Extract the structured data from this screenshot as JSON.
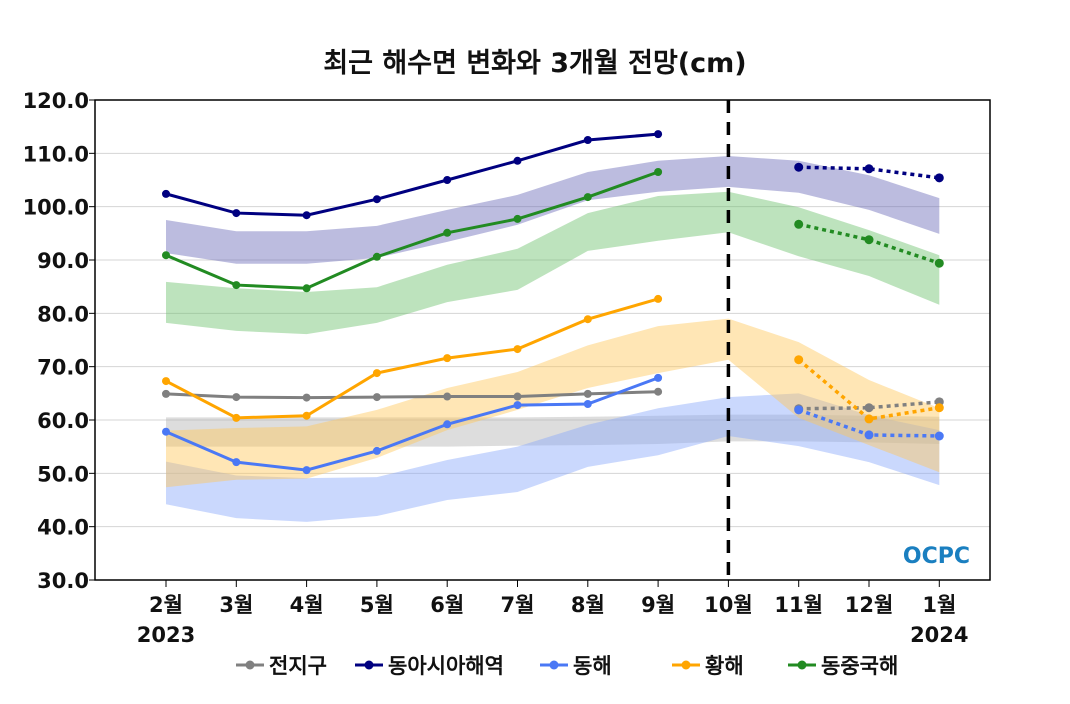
{
  "chart_data": {
    "type": "line",
    "title": "최근 해수면 변화와 3개월 전망(cm)",
    "xlabel": "",
    "ylabel": "",
    "ylim": [
      30,
      120
    ],
    "yticks": [
      "30.0",
      "40.0",
      "50.0",
      "60.0",
      "70.0",
      "80.0",
      "90.0",
      "100.0",
      "110.0",
      "120.0"
    ],
    "categories": [
      "2월",
      "3월",
      "4월",
      "5월",
      "6월",
      "7월",
      "8월",
      "9월",
      "10월",
      "11월",
      "12월",
      "1월"
    ],
    "year_labels": {
      "start": "2023",
      "end": "2024"
    },
    "forecast_divider_category": "10월",
    "grid": true,
    "legend_position": "bottom",
    "logo": "OCPC",
    "series": [
      {
        "name": "전지구",
        "color": "#808080",
        "band_color": "#b4b4b4",
        "observed": [
          64.9,
          64.3,
          64.2,
          64.3,
          64.4,
          64.4,
          64.9,
          65.3
        ],
        "forecast": [
          62.1,
          62.3,
          63.4
        ],
        "band_upper": [
          60.5,
          60.5,
          60.5,
          60.5,
          60.5,
          60.5,
          60.6,
          60.8,
          61.0,
          61.0,
          60.8,
          60.6
        ],
        "band_lower": [
          55.0,
          55.0,
          55.0,
          55.0,
          55.0,
          55.2,
          55.3,
          55.5,
          56.0,
          56.0,
          55.8,
          55.5
        ]
      },
      {
        "name": "동아시아해역",
        "color": "#000080",
        "band_color": "#6a6ab8",
        "observed": [
          102.4,
          98.8,
          98.4,
          101.4,
          105.0,
          108.6,
          112.5,
          113.6
        ],
        "forecast": [
          107.4,
          107.1,
          105.4
        ],
        "band_upper": [
          97.5,
          95.4,
          95.4,
          96.4,
          99.4,
          102.2,
          106.5,
          108.6,
          109.5,
          108.6,
          105.9,
          101.6
        ],
        "band_lower": [
          91.3,
          89.3,
          89.3,
          90.4,
          93.4,
          96.6,
          101.2,
          102.8,
          103.7,
          102.6,
          99.4,
          94.9
        ]
      },
      {
        "name": "동해",
        "color": "#4a78f5",
        "band_color": "#8aa8fb",
        "observed": [
          57.8,
          52.1,
          50.6,
          54.2,
          59.2,
          62.8,
          63.0,
          67.9
        ],
        "forecast": [
          61.9,
          57.2,
          57.0
        ],
        "band_upper": [
          52.2,
          49.6,
          49.1,
          49.3,
          52.5,
          55.0,
          59.1,
          62.2,
          64.3,
          65.0,
          60.9,
          58.1
        ],
        "band_lower": [
          44.2,
          41.6,
          40.9,
          42.0,
          45.0,
          46.5,
          51.2,
          53.4,
          57.0,
          55.1,
          52.1,
          47.8
        ]
      },
      {
        "name": "황해",
        "color": "#ffa500",
        "band_color": "#ffc85a",
        "observed": [
          67.3,
          60.4,
          60.8,
          68.8,
          71.6,
          73.3,
          78.9,
          82.7
        ],
        "forecast": [
          71.3,
          60.2,
          62.3
        ],
        "band_upper": [
          58.0,
          58.5,
          58.8,
          61.9,
          66.0,
          69.0,
          74.0,
          77.6,
          79.0,
          74.6,
          67.5,
          62.2
        ],
        "band_lower": [
          47.4,
          48.8,
          49.0,
          52.9,
          58.1,
          61.9,
          66.0,
          68.8,
          71.3,
          60.4,
          55.3,
          50.2
        ]
      },
      {
        "name": "동중국해",
        "color": "#228b22",
        "band_color": "#6cc06c",
        "observed": [
          90.9,
          85.3,
          84.7,
          90.6,
          95.1,
          97.7,
          101.8,
          106.5
        ],
        "forecast": [
          96.7,
          93.8,
          89.4
        ],
        "band_upper": [
          85.9,
          84.7,
          84.0,
          84.9,
          89.1,
          92.1,
          98.8,
          102.0,
          102.8,
          99.9,
          95.6,
          90.9
        ],
        "band_lower": [
          78.2,
          76.7,
          76.1,
          78.2,
          82.1,
          84.4,
          91.7,
          93.6,
          95.2,
          90.7,
          87.0,
          81.6
        ]
      }
    ]
  }
}
